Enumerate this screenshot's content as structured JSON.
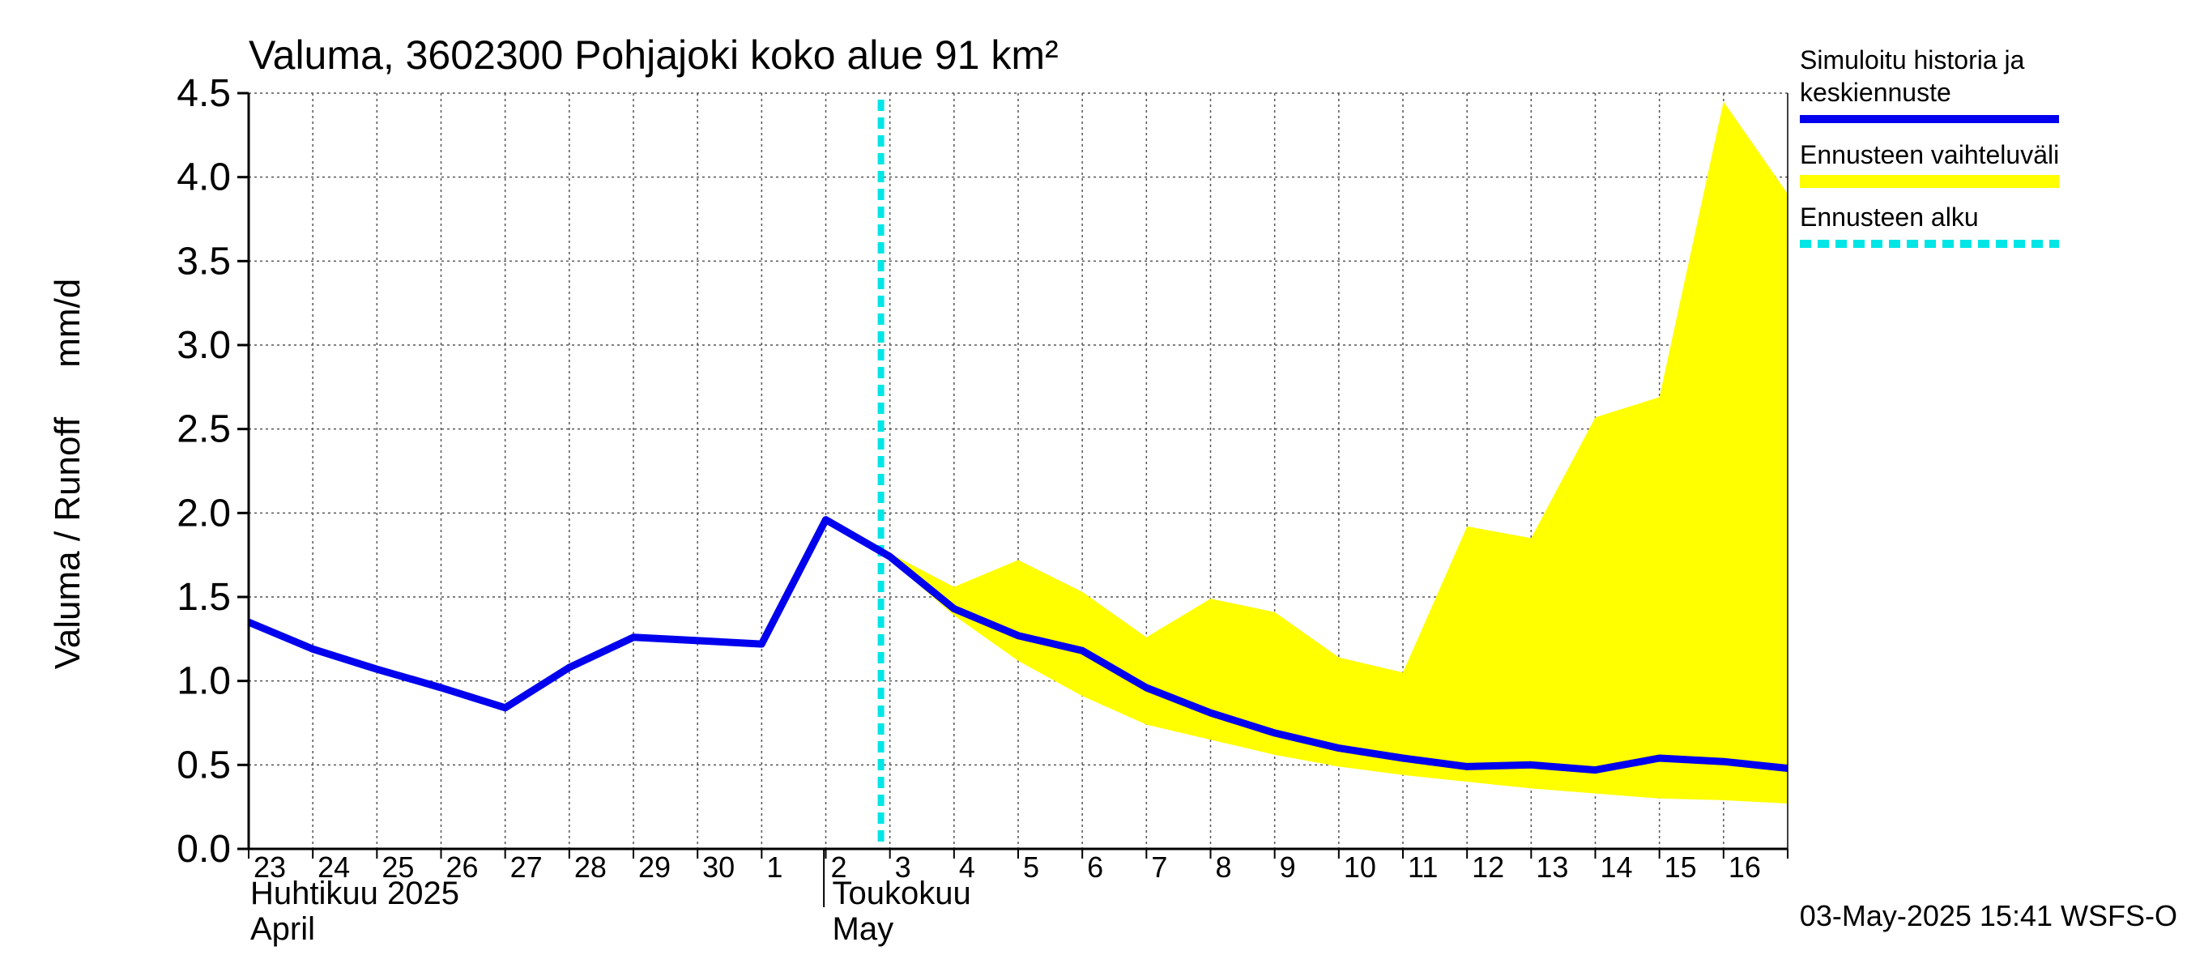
{
  "chart_data": {
    "type": "line",
    "title": "Valuma, 3602300 Pohjajoki koko alue 91 km²",
    "ylabel": "Valuma / Runoff     mm/d",
    "ylim": [
      0,
      4.5
    ],
    "yticks": [
      "0.0",
      "0.5",
      "1.0",
      "1.5",
      "2.0",
      "2.5",
      "3.0",
      "3.5",
      "4.0",
      "4.5"
    ],
    "grid": true,
    "x_start": "2025-04-23",
    "x_end": "2025-05-17",
    "x_tick_labels": [
      "23",
      "24",
      "25",
      "26",
      "27",
      "28",
      "29",
      "30",
      "1",
      "2",
      "3",
      "4",
      "5",
      "6",
      "7",
      "8",
      "9",
      "10",
      "11",
      "12",
      "13",
      "14",
      "15",
      "16"
    ],
    "month_labels": [
      {
        "line1": "Huhtikuu  2025",
        "line2": "April",
        "start": "2025-04-23"
      },
      {
        "line1": "Toukokuu",
        "line2": "May",
        "start": "2025-05-02"
      }
    ],
    "forecast_start": "2025-05-03",
    "legend_placement": "right",
    "series": [
      {
        "name": "Simuloitu historia ja keskiennuste",
        "kind": "line",
        "color": "#0000ee",
        "points": [
          [
            "2025-04-23",
            1.35
          ],
          [
            "2025-04-24",
            1.19
          ],
          [
            "2025-04-25",
            1.07
          ],
          [
            "2025-04-26",
            0.96
          ],
          [
            "2025-04-27",
            0.84
          ],
          [
            "2025-04-28",
            1.08
          ],
          [
            "2025-04-29",
            1.26
          ],
          [
            "2025-04-30",
            1.24
          ],
          [
            "2025-05-01",
            1.22
          ],
          [
            "2025-05-02",
            1.96
          ],
          [
            "2025-05-03",
            1.74
          ],
          [
            "2025-05-04",
            1.43
          ],
          [
            "2025-05-05",
            1.27
          ],
          [
            "2025-05-06",
            1.18
          ],
          [
            "2025-05-07",
            0.96
          ],
          [
            "2025-05-08",
            0.81
          ],
          [
            "2025-05-09",
            0.69
          ],
          [
            "2025-05-10",
            0.6
          ],
          [
            "2025-05-11",
            0.54
          ],
          [
            "2025-05-12",
            0.49
          ],
          [
            "2025-05-13",
            0.5
          ],
          [
            "2025-05-14",
            0.47
          ],
          [
            "2025-05-15",
            0.54
          ],
          [
            "2025-05-16",
            0.52
          ],
          [
            "2025-05-17",
            0.48
          ]
        ]
      },
      {
        "name": "Ennusteen vaihteluväli",
        "kind": "band",
        "color": "#ffff00",
        "dates": [
          "2025-05-03",
          "2025-05-04",
          "2025-05-05",
          "2025-05-06",
          "2025-05-07",
          "2025-05-08",
          "2025-05-09",
          "2025-05-10",
          "2025-05-11",
          "2025-05-12",
          "2025-05-13",
          "2025-05-14",
          "2025-05-15",
          "2025-05-16",
          "2025-05-17"
        ],
        "upper": [
          1.76,
          1.56,
          1.72,
          1.53,
          1.26,
          1.49,
          1.41,
          1.14,
          1.05,
          1.92,
          1.85,
          2.57,
          2.69,
          4.45,
          3.9
        ],
        "lower": [
          1.72,
          1.39,
          1.12,
          0.91,
          0.74,
          0.65,
          0.56,
          0.49,
          0.44,
          0.4,
          0.36,
          0.33,
          0.3,
          0.29,
          0.27
        ]
      },
      {
        "name": "Ennusteen alku",
        "kind": "vline",
        "color": "#00e5e5",
        "x": "2025-05-03"
      }
    ],
    "legend": [
      {
        "label_lines": [
          "Simuloitu historia ja",
          "keskiennuste"
        ],
        "color": "#0000ee",
        "style": "solid"
      },
      {
        "label_lines": [
          "Ennusteen vaihteluväli"
        ],
        "color": "#ffff00",
        "style": "solid"
      },
      {
        "label_lines": [
          "Ennusteen alku"
        ],
        "color": "#00e5e5",
        "style": "dashed"
      }
    ],
    "footer": "03-May-2025 15:41 WSFS-O"
  }
}
